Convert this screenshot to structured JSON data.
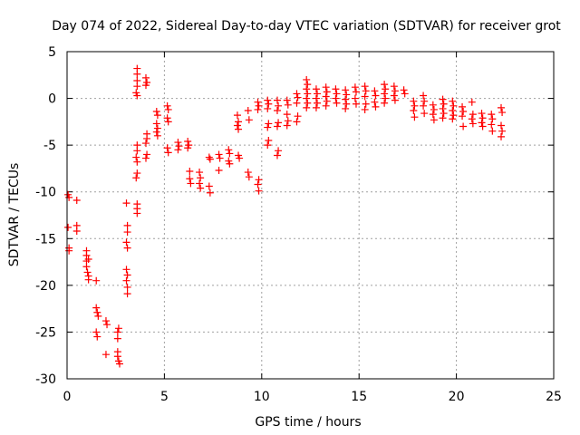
{
  "chart_data": {
    "type": "scatter",
    "title": "Day 074 of 2022, Sidereal Day-to-day VTEC variation (SDTVAR) for receiver grot",
    "xlabel": "GPS time / hours",
    "ylabel": "SDTVAR / TECUs",
    "xlim": [
      0,
      25
    ],
    "ylim": [
      -30,
      5
    ],
    "xticks": [
      0,
      5,
      10,
      15,
      20,
      25
    ],
    "yticks": [
      -30,
      -25,
      -20,
      -15,
      -10,
      -5,
      0,
      5
    ],
    "xtick_labels": [
      "0",
      "5",
      "10",
      "15",
      "20",
      "25"
    ],
    "ytick_labels": [
      "-30",
      "-25",
      "-20",
      "-15",
      "-10",
      "-5",
      "0",
      "5"
    ],
    "grid": true,
    "marker": "plus",
    "color": "#ff0000",
    "series": [
      {
        "name": "SDTVAR",
        "points": [
          [
            0.05,
            -10.3
          ],
          [
            0.1,
            -10.6
          ],
          [
            0.05,
            -13.8
          ],
          [
            0.1,
            -16.0
          ],
          [
            0.1,
            -16.3
          ],
          [
            0.5,
            -10.9
          ],
          [
            0.5,
            -13.6
          ],
          [
            0.5,
            -14.2
          ],
          [
            1.0,
            -16.3
          ],
          [
            1.0,
            -16.8
          ],
          [
            1.0,
            -17.4
          ],
          [
            1.0,
            -18.0
          ],
          [
            1.05,
            -18.6
          ],
          [
            1.1,
            -19.0
          ],
          [
            1.1,
            -19.4
          ],
          [
            1.1,
            -17.2
          ],
          [
            1.5,
            -19.5
          ],
          [
            1.5,
            -22.4
          ],
          [
            1.55,
            -22.9
          ],
          [
            1.6,
            -23.3
          ],
          [
            1.5,
            -25.0
          ],
          [
            1.55,
            -25.5
          ],
          [
            2.0,
            -23.8
          ],
          [
            2.05,
            -24.2
          ],
          [
            2.0,
            -27.4
          ],
          [
            2.6,
            -25.0
          ],
          [
            2.6,
            -25.7
          ],
          [
            2.65,
            -24.6
          ],
          [
            2.6,
            -27.1
          ],
          [
            2.6,
            -27.6
          ],
          [
            2.65,
            -28.1
          ],
          [
            2.7,
            -28.4
          ],
          [
            3.05,
            -15.4
          ],
          [
            3.1,
            -16.0
          ],
          [
            3.05,
            -18.3
          ],
          [
            3.1,
            -18.9
          ],
          [
            3.05,
            -19.5
          ],
          [
            3.1,
            -20.2
          ],
          [
            3.1,
            -20.9
          ],
          [
            3.05,
            -11.2
          ],
          [
            3.1,
            -13.6
          ],
          [
            3.1,
            -14.3
          ],
          [
            3.6,
            3.2
          ],
          [
            3.6,
            2.6
          ],
          [
            3.6,
            1.9
          ],
          [
            3.6,
            1.3
          ],
          [
            3.55,
            0.6
          ],
          [
            3.6,
            0.3
          ],
          [
            3.6,
            -5.0
          ],
          [
            3.6,
            -5.6
          ],
          [
            3.55,
            -6.3
          ],
          [
            3.6,
            -6.8
          ],
          [
            3.6,
            -8.0
          ],
          [
            3.55,
            -8.5
          ],
          [
            3.6,
            -11.3
          ],
          [
            3.6,
            -11.8
          ],
          [
            3.6,
            -12.3
          ],
          [
            4.05,
            2.2
          ],
          [
            4.1,
            1.7
          ],
          [
            4.05,
            1.4
          ],
          [
            4.1,
            -3.8
          ],
          [
            4.1,
            -4.3
          ],
          [
            4.05,
            -4.8
          ],
          [
            4.1,
            -6.0
          ],
          [
            4.05,
            -6.4
          ],
          [
            4.6,
            -1.4
          ],
          [
            4.65,
            -1.8
          ],
          [
            4.6,
            -2.7
          ],
          [
            4.65,
            -3.2
          ],
          [
            4.6,
            -3.6
          ],
          [
            4.65,
            -4.0
          ],
          [
            5.15,
            -0.8
          ],
          [
            5.2,
            -1.2
          ],
          [
            5.15,
            -2.1
          ],
          [
            5.2,
            -2.5
          ],
          [
            5.15,
            -5.3
          ],
          [
            5.2,
            -5.8
          ],
          [
            5.7,
            -4.7
          ],
          [
            5.75,
            -5.1
          ],
          [
            5.7,
            -5.5
          ],
          [
            6.2,
            -4.6
          ],
          [
            6.25,
            -5.0
          ],
          [
            6.2,
            -5.3
          ],
          [
            6.3,
            -7.8
          ],
          [
            6.3,
            -8.6
          ],
          [
            6.35,
            -9.1
          ],
          [
            6.8,
            -7.9
          ],
          [
            6.85,
            -8.5
          ],
          [
            6.8,
            -9.1
          ],
          [
            6.85,
            -9.6
          ],
          [
            7.3,
            -6.3
          ],
          [
            7.35,
            -6.5
          ],
          [
            7.3,
            -9.4
          ],
          [
            7.35,
            -10.1
          ],
          [
            7.8,
            -6.0
          ],
          [
            7.85,
            -6.4
          ],
          [
            7.8,
            -7.7
          ],
          [
            8.3,
            -5.5
          ],
          [
            8.35,
            -5.9
          ],
          [
            8.3,
            -6.7
          ],
          [
            8.35,
            -7.0
          ],
          [
            8.8,
            -6.1
          ],
          [
            8.85,
            -6.4
          ],
          [
            8.75,
            -1.8
          ],
          [
            8.8,
            -2.5
          ],
          [
            8.75,
            -2.9
          ],
          [
            8.8,
            -3.3
          ],
          [
            9.3,
            -1.3
          ],
          [
            9.35,
            -2.3
          ],
          [
            9.3,
            -7.9
          ],
          [
            9.35,
            -8.4
          ],
          [
            9.8,
            -0.4
          ],
          [
            9.85,
            -0.8
          ],
          [
            9.8,
            -1.2
          ],
          [
            9.85,
            -8.7
          ],
          [
            9.8,
            -9.2
          ],
          [
            9.85,
            -9.9
          ],
          [
            10.3,
            -0.2
          ],
          [
            10.35,
            -0.6
          ],
          [
            10.3,
            -1.1
          ],
          [
            10.35,
            -2.7
          ],
          [
            10.3,
            -3.1
          ],
          [
            10.35,
            -4.5
          ],
          [
            10.3,
            -5.0
          ],
          [
            10.8,
            -0.2
          ],
          [
            10.85,
            -0.8
          ],
          [
            10.8,
            -1.3
          ],
          [
            10.85,
            -2.6
          ],
          [
            10.8,
            -3.0
          ],
          [
            10.85,
            -5.6
          ],
          [
            10.8,
            -6.1
          ],
          [
            11.3,
            -0.2
          ],
          [
            11.35,
            -0.7
          ],
          [
            11.3,
            -1.7
          ],
          [
            11.35,
            -2.4
          ],
          [
            11.3,
            -2.9
          ],
          [
            11.8,
            0.5
          ],
          [
            11.85,
            0.1
          ],
          [
            11.8,
            -0.5
          ],
          [
            11.85,
            -1.9
          ],
          [
            11.8,
            -2.5
          ],
          [
            12.3,
            2.0
          ],
          [
            12.35,
            1.5
          ],
          [
            12.3,
            1.0
          ],
          [
            12.35,
            0.5
          ],
          [
            12.3,
            0.0
          ],
          [
            12.35,
            -0.5
          ],
          [
            12.3,
            -1.0
          ],
          [
            12.8,
            1.0
          ],
          [
            12.85,
            0.5
          ],
          [
            12.8,
            0.0
          ],
          [
            12.85,
            -0.5
          ],
          [
            12.8,
            -1.0
          ],
          [
            13.3,
            1.2
          ],
          [
            13.35,
            0.7
          ],
          [
            13.3,
            0.2
          ],
          [
            13.35,
            -0.3
          ],
          [
            13.3,
            -0.8
          ],
          [
            13.8,
            1.0
          ],
          [
            13.85,
            0.5
          ],
          [
            13.8,
            0.0
          ],
          [
            13.85,
            -0.5
          ],
          [
            14.3,
            0.9
          ],
          [
            14.35,
            0.4
          ],
          [
            14.3,
            -0.1
          ],
          [
            14.35,
            -0.6
          ],
          [
            14.3,
            -1.1
          ],
          [
            14.8,
            1.2
          ],
          [
            14.85,
            0.7
          ],
          [
            14.8,
            0.0
          ],
          [
            14.85,
            -0.6
          ],
          [
            15.3,
            1.3
          ],
          [
            15.35,
            0.8
          ],
          [
            15.3,
            0.2
          ],
          [
            15.35,
            -0.6
          ],
          [
            15.3,
            -1.2
          ],
          [
            15.8,
            0.8
          ],
          [
            15.85,
            0.3
          ],
          [
            15.8,
            -0.4
          ],
          [
            15.85,
            -0.9
          ],
          [
            16.3,
            1.5
          ],
          [
            16.35,
            1.0
          ],
          [
            16.3,
            0.5
          ],
          [
            16.35,
            0.0
          ],
          [
            16.3,
            -0.5
          ],
          [
            16.8,
            1.3
          ],
          [
            16.85,
            0.8
          ],
          [
            16.8,
            0.3
          ],
          [
            16.85,
            -0.2
          ],
          [
            17.3,
            0.9
          ],
          [
            17.35,
            0.5
          ],
          [
            17.8,
            -0.3
          ],
          [
            17.85,
            -0.8
          ],
          [
            17.8,
            -1.3
          ],
          [
            17.85,
            -2.0
          ],
          [
            18.3,
            0.3
          ],
          [
            18.35,
            -0.3
          ],
          [
            18.3,
            -0.8
          ],
          [
            18.35,
            -1.6
          ],
          [
            18.8,
            -0.7
          ],
          [
            18.85,
            -1.2
          ],
          [
            18.8,
            -1.7
          ],
          [
            18.85,
            -2.3
          ],
          [
            19.3,
            -0.1
          ],
          [
            19.35,
            -0.6
          ],
          [
            19.3,
            -1.1
          ],
          [
            19.35,
            -1.6
          ],
          [
            19.3,
            -2.1
          ],
          [
            19.8,
            -0.3
          ],
          [
            19.85,
            -0.8
          ],
          [
            19.8,
            -1.3
          ],
          [
            19.85,
            -1.8
          ],
          [
            19.8,
            -2.2
          ],
          [
            20.3,
            -0.9
          ],
          [
            20.35,
            -1.4
          ],
          [
            20.3,
            -1.9
          ],
          [
            20.35,
            -3.0
          ],
          [
            20.8,
            -0.4
          ],
          [
            20.85,
            -1.7
          ],
          [
            20.8,
            -2.2
          ],
          [
            20.85,
            -2.7
          ],
          [
            21.3,
            -1.6
          ],
          [
            21.35,
            -2.1
          ],
          [
            21.3,
            -2.6
          ],
          [
            21.35,
            -3.0
          ],
          [
            21.8,
            -1.7
          ],
          [
            21.85,
            -2.2
          ],
          [
            21.8,
            -2.8
          ],
          [
            21.85,
            -3.5
          ],
          [
            22.3,
            -1.0
          ],
          [
            22.35,
            -1.5
          ],
          [
            22.3,
            -2.9
          ],
          [
            22.35,
            -3.5
          ],
          [
            22.3,
            -4.1
          ]
        ]
      }
    ]
  }
}
